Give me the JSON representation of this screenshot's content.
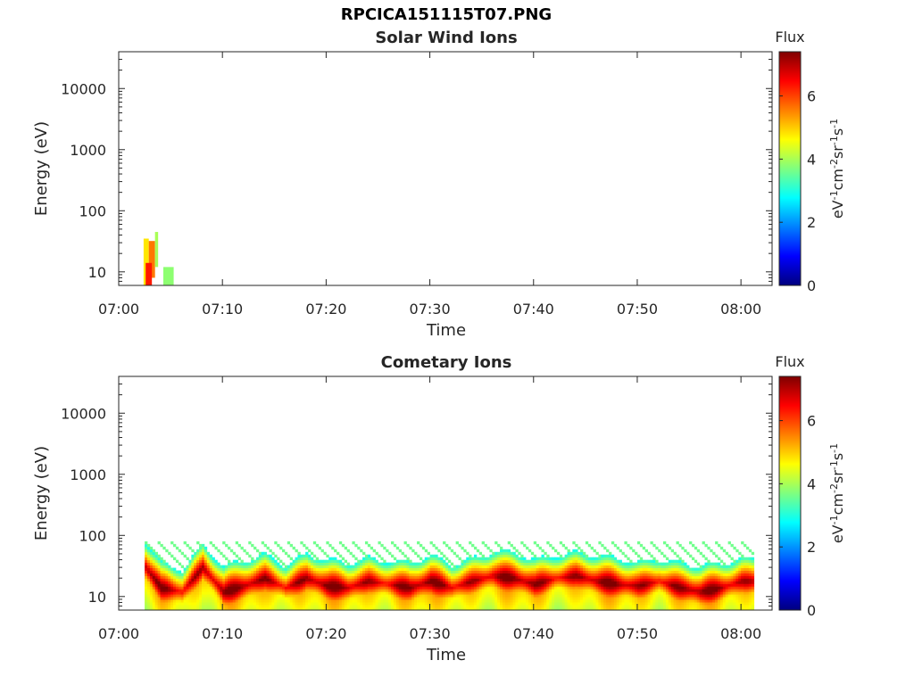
{
  "figure": {
    "title": "RPCICA151115T07.PNG"
  },
  "colors": {
    "colormap": [
      "#00007f",
      "#0000ff",
      "#007fff",
      "#00ffff",
      "#7fff7f",
      "#ffff00",
      "#ff7f00",
      "#ff0000",
      "#7f0000"
    ],
    "axis": "#262626"
  },
  "chart_data": [
    {
      "type": "heatmap",
      "title": "Solar Wind Ions",
      "xlabel": "Time",
      "ylabel": "Energy (eV)",
      "x_ticks": [
        "07:00",
        "07:10",
        "07:20",
        "07:30",
        "07:40",
        "07:50",
        "08:00"
      ],
      "xlim": [
        "07:00",
        "08:03"
      ],
      "y_scale": "log",
      "y_ticks": [
        "10",
        "100",
        "1000",
        "10000"
      ],
      "ylim": [
        6,
        40000
      ],
      "colorbar": {
        "title": "Flux",
        "label": "eV-1cm-2sr-1s-1",
        "ticks": [
          "0",
          "2",
          "4",
          "6"
        ],
        "range": [
          0,
          7.4
        ]
      },
      "grid": false,
      "cells": [
        {
          "t": [
            2.4,
            2.9
          ],
          "e": [
            6,
            35
          ],
          "flux": 4.8
        },
        {
          "t": [
            2.9,
            3.5
          ],
          "e": [
            8,
            32
          ],
          "flux": 5.6
        },
        {
          "t": [
            2.6,
            3.2
          ],
          "e": [
            6,
            14
          ],
          "flux": 6.3
        },
        {
          "t": [
            3.5,
            3.8
          ],
          "e": [
            12,
            45
          ],
          "flux": 4.0
        },
        {
          "t": [
            4.3,
            5.3
          ],
          "e": [
            6,
            12
          ],
          "flux": 3.8
        }
      ]
    },
    {
      "type": "heatmap",
      "title": "Cometary Ions",
      "xlabel": "Time",
      "ylabel": "Energy (eV)",
      "x_ticks": [
        "07:00",
        "07:10",
        "07:20",
        "07:30",
        "07:40",
        "07:50",
        "08:00"
      ],
      "xlim": [
        "07:00",
        "08:03"
      ],
      "y_scale": "log",
      "y_ticks": [
        "10",
        "100",
        "1000",
        "10000"
      ],
      "ylim": [
        6,
        40000
      ],
      "colorbar": {
        "title": "Flux",
        "label": "eV-1cm-2sr-1s-1",
        "ticks": [
          "0",
          "2",
          "4",
          "6"
        ],
        "range": [
          0,
          7.4
        ]
      },
      "grid": false,
      "data_range": [
        "07:02",
        "08:01"
      ],
      "band": [
        {
          "t": 2.5,
          "e": 30
        },
        {
          "t": 4,
          "e": 14
        },
        {
          "t": 6,
          "e": 12
        },
        {
          "t": 8,
          "e": 30
        },
        {
          "t": 10,
          "e": 12
        },
        {
          "t": 12,
          "e": 15
        },
        {
          "t": 14,
          "e": 20
        },
        {
          "t": 16,
          "e": 14
        },
        {
          "t": 18,
          "e": 20
        },
        {
          "t": 20,
          "e": 15
        },
        {
          "t": 22,
          "e": 14
        },
        {
          "t": 24,
          "e": 18
        },
        {
          "t": 26,
          "e": 16
        },
        {
          "t": 28,
          "e": 14
        },
        {
          "t": 30,
          "e": 18
        },
        {
          "t": 32,
          "e": 14
        },
        {
          "t": 34,
          "e": 18
        },
        {
          "t": 36,
          "e": 22
        },
        {
          "t": 38,
          "e": 20
        },
        {
          "t": 40,
          "e": 16
        },
        {
          "t": 42,
          "e": 20
        },
        {
          "t": 44,
          "e": 22
        },
        {
          "t": 46,
          "e": 18
        },
        {
          "t": 48,
          "e": 16
        },
        {
          "t": 50,
          "e": 15
        },
        {
          "t": 52,
          "e": 18
        },
        {
          "t": 54,
          "e": 14
        },
        {
          "t": 56,
          "e": 12
        },
        {
          "t": 58,
          "e": 14
        },
        {
          "t": 60,
          "e": 18
        },
        {
          "t": 61,
          "e": 18
        }
      ]
    }
  ]
}
